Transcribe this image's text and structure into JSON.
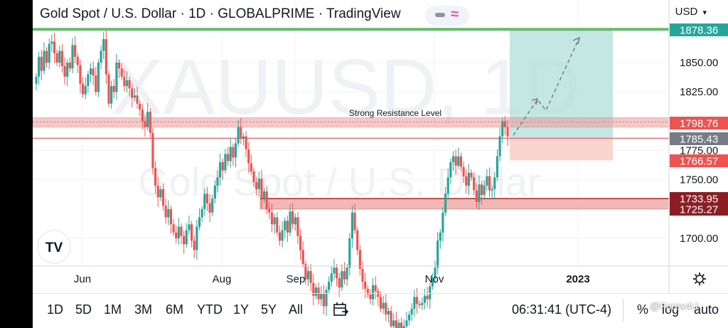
{
  "header": {
    "title": "Gold Spot / U.S. Dollar · 1D · GLOBALPRIME · TradingView",
    "currency": "USD",
    "icons": [
      "minus-icon",
      "wave-icon",
      "chevron-down-icon"
    ]
  },
  "watermark": {
    "symbol": "XAUUSD, 1D",
    "description": "Gold Spot / U.S. Dollar",
    "logo": "TV"
  },
  "price_tags": [
    {
      "label": "1878.36",
      "price": 1878.36,
      "color": "#26a69a"
    },
    {
      "label": "1798.76",
      "price": 1798.76,
      "color": "#ef5350"
    },
    {
      "label": "1785.43",
      "price": 1785.43,
      "color": "#787b86"
    },
    {
      "label": "1766.57",
      "price": 1766.57,
      "color": "#ef5350"
    },
    {
      "label": "1733.95",
      "price": 1733.95,
      "color": "#8b1e25"
    },
    {
      "label": "1725.27",
      "price": 1725.27,
      "color": "#8b1e25"
    }
  ],
  "annotation": {
    "text": "Strong Resistance Level"
  },
  "toolbar": {
    "ranges": [
      "1D",
      "5D",
      "1M",
      "3M",
      "6M",
      "YTD",
      "1Y",
      "5Y",
      "All"
    ],
    "time": "06:31:41 (UTC-4)",
    "percent": "%",
    "log": "log",
    "auto": "auto",
    "watermark_text": "@Forex4U",
    "icons": [
      "calendar-range-icon",
      "settings-icon"
    ]
  },
  "chart_data": {
    "type": "candlestick",
    "y_ticks": [
      "1850.00",
      "1825.00",
      "1800.00",
      "1775.00",
      "1750.00",
      "1700.00"
    ],
    "ylim": [
      1650,
      1885
    ],
    "x_ticks": [
      "Jun",
      "Aug",
      "Sep",
      "Nov",
      "2023"
    ],
    "colors": {
      "up": "#26a69a",
      "down": "#ef5350"
    },
    "closes": [
      1838,
      1855,
      1843,
      1860,
      1850,
      1866,
      1868,
      1858,
      1850,
      1860,
      1847,
      1838,
      1850,
      1845,
      1865,
      1855,
      1848,
      1832,
      1823,
      1830,
      1840,
      1845,
      1839,
      1825,
      1850,
      1860,
      1870,
      1840,
      1815,
      1830,
      1825,
      1850,
      1845,
      1838,
      1830,
      1835,
      1828,
      1820,
      1822,
      1815,
      1810,
      1800,
      1795,
      1808,
      1790,
      1760,
      1745,
      1735,
      1742,
      1728,
      1718,
      1725,
      1712,
      1705,
      1700,
      1710,
      1702,
      1695,
      1707,
      1712,
      1698,
      1690,
      1710,
      1718,
      1725,
      1738,
      1730,
      1722,
      1734,
      1745,
      1752,
      1765,
      1758,
      1772,
      1766,
      1778,
      1769,
      1781,
      1795,
      1785,
      1787,
      1776,
      1764,
      1757,
      1748,
      1742,
      1751,
      1734,
      1740,
      1725,
      1722,
      1712,
      1718,
      1705,
      1698,
      1707,
      1715,
      1705,
      1723,
      1712,
      1718,
      1702,
      1690,
      1678,
      1665,
      1672,
      1662,
      1651,
      1658,
      1648,
      1653,
      1642,
      1656,
      1663,
      1670,
      1675,
      1666,
      1658,
      1672,
      1665,
      1675,
      1700,
      1722,
      1707,
      1690,
      1674,
      1663,
      1657,
      1652,
      1648,
      1660,
      1655,
      1650,
      1640,
      1645,
      1635,
      1638,
      1625,
      1630,
      1622,
      1628,
      1620,
      1625,
      1630,
      1635,
      1640,
      1650,
      1644,
      1643,
      1645,
      1651,
      1648,
      1659,
      1666,
      1675,
      1698,
      1705,
      1722,
      1738,
      1752,
      1765,
      1770,
      1762,
      1770,
      1761,
      1753,
      1745,
      1756,
      1752,
      1741,
      1731,
      1746,
      1737,
      1745,
      1753,
      1741,
      1742,
      1752,
      1770,
      1787,
      1800,
      1795,
      1787
    ]
  }
}
